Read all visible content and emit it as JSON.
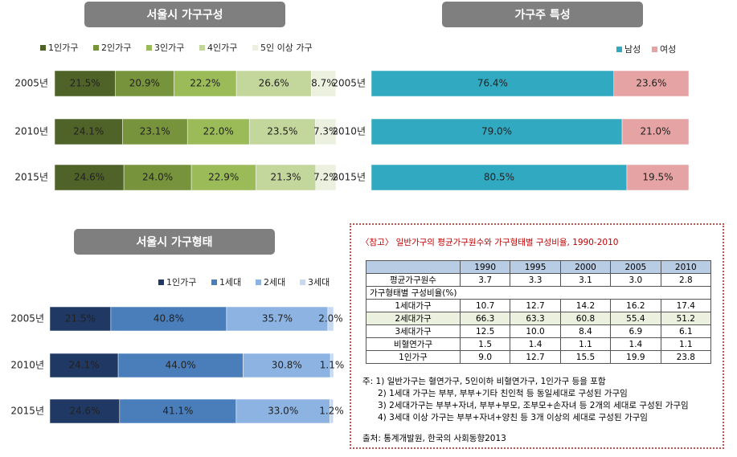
{
  "chart_data": [
    {
      "type": "bar",
      "orientation": "horizontal",
      "stacked": true,
      "title": "서울시 가구구성",
      "categories": [
        "2005년",
        "2010년",
        "2015년"
      ],
      "xlim": [
        0,
        100
      ],
      "series": [
        {
          "name": "1인가구",
          "color": "#4f6228",
          "values": [
            21.5,
            24.1,
            24.6
          ],
          "value_labels": [
            "21.5%",
            "24.1%",
            "24.6%"
          ]
        },
        {
          "name": "2인가구",
          "color": "#77933c",
          "values": [
            20.9,
            23.1,
            24.0
          ],
          "value_labels": [
            "20.9%",
            "23.1%",
            "24.0%"
          ]
        },
        {
          "name": "3인가구",
          "color": "#9bbb59",
          "values": [
            22.2,
            22.0,
            22.9
          ],
          "value_labels": [
            "22.2%",
            "22.0%",
            "22.9%"
          ]
        },
        {
          "name": "4인가구",
          "color": "#c3d69b",
          "values": [
            26.6,
            23.5,
            21.3
          ],
          "value_labels": [
            "26.6%",
            "23.5%",
            "21.3%"
          ]
        },
        {
          "name": "5인 이상 가구",
          "color": "#ebf1de",
          "values": [
            8.7,
            7.3,
            7.2
          ],
          "value_labels": [
            "8.7%",
            "7.3%",
            "7.2%"
          ]
        }
      ]
    },
    {
      "type": "bar",
      "orientation": "horizontal",
      "stacked": true,
      "title": "가구주 특성",
      "categories": [
        "2005년",
        "2010년",
        "2015년"
      ],
      "xlim": [
        0,
        100
      ],
      "series": [
        {
          "name": "남성",
          "color": "#31a9c1",
          "values": [
            76.4,
            79.0,
            80.5
          ],
          "value_labels": [
            "76.4%",
            "79.0%",
            "80.5%"
          ]
        },
        {
          "name": "여성",
          "color": "#e6a3a3",
          "values": [
            23.6,
            21.0,
            19.5
          ],
          "value_labels": [
            "23.6%",
            "21.0%",
            "19.5%"
          ]
        }
      ]
    },
    {
      "type": "bar",
      "orientation": "horizontal",
      "stacked": true,
      "title": "서울시 가구형태",
      "categories": [
        "2005년",
        "2010년",
        "2015년"
      ],
      "xlim": [
        0,
        100
      ],
      "series": [
        {
          "name": "1인가구",
          "color": "#1f3864",
          "values": [
            21.5,
            24.1,
            24.6
          ],
          "value_labels": [
            "21.5%",
            "24.1%",
            "24.6%"
          ]
        },
        {
          "name": "1세대",
          "color": "#4a7ebb",
          "values": [
            40.8,
            44.0,
            41.1
          ],
          "value_labels": [
            "40.8%",
            "44.0%",
            "41.1%"
          ]
        },
        {
          "name": "2세대",
          "color": "#8db3e2",
          "values": [
            35.7,
            30.8,
            33.0
          ],
          "value_labels": [
            "35.7%",
            "30.8%",
            "33.0%"
          ]
        },
        {
          "name": "3세대",
          "color": "#c6d9f1",
          "values": [
            2.0,
            1.1,
            1.2
          ],
          "value_labels": [
            "2.0%",
            "1.1%",
            "1.2%"
          ]
        }
      ]
    }
  ],
  "table": {
    "title": "〈참고〉 일반가구의 평균가구원수와 가구형태별 구성비율, 1990-2010",
    "header": [
      "1990",
      "1995",
      "2000",
      "2005",
      "2010"
    ],
    "rows": [
      [
        "평균가구원수",
        "3.7",
        "3.3",
        "3.1",
        "3.0",
        "2.8"
      ],
      [
        "가구형태별 구성비율(%)"
      ],
      [
        "1세대가구",
        "10.7",
        "12.7",
        "14.2",
        "16.2",
        "17.4"
      ],
      [
        "2세대가구",
        "66.3",
        "63.3",
        "60.8",
        "55.4",
        "51.2"
      ],
      [
        "3세대가구",
        "12.5",
        "10.0",
        "8.4",
        "6.9",
        "6.1"
      ],
      [
        "비혈연가구",
        "1.5",
        "1.4",
        "1.1",
        "1.4",
        "1.1"
      ],
      [
        "1인가구",
        "9.0",
        "12.7",
        "15.5",
        "19.9",
        "23.8"
      ]
    ],
    "notes": [
      "주: 1) 일반가구는 혈연가구, 5인이하 비혈연가구, 1인가구 등을 포함",
      "2) 1세대 가구는 부부, 부부+기타 친인척 등 동일세대로 구성된 가구임",
      "3) 2세대가구는 부부+자녀, 부부+부모, 조부모+손자녀 등 2개의 세대로 구성된 가구임",
      "4) 3세대 이상 가구는 부부+자녀+양친 등 3개 이상의 세대로 구성된 가구임"
    ],
    "source": "출처: 통계개발원, 한국의 사회동향2013"
  }
}
